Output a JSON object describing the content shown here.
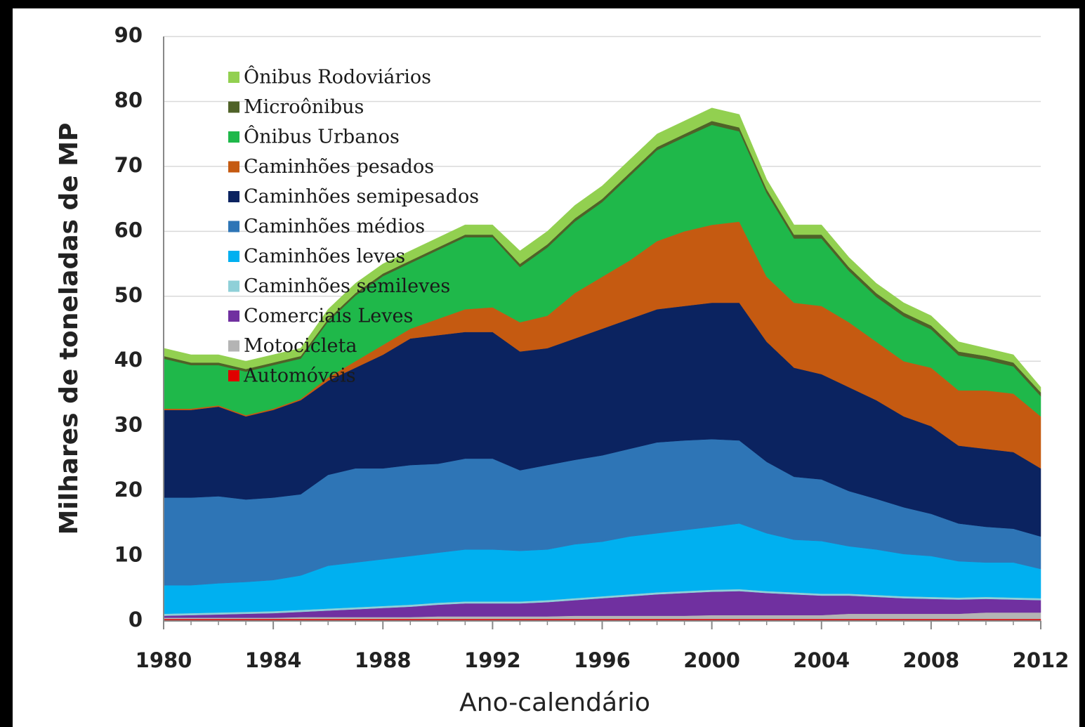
{
  "chart_data": {
    "type": "stacked_area",
    "x_label": "Ano-calendário",
    "y_label": "Milhares de toneladas de MP",
    "x": [
      1980,
      1981,
      1982,
      1983,
      1984,
      1985,
      1986,
      1987,
      1988,
      1989,
      1990,
      1991,
      1992,
      1993,
      1994,
      1995,
      1996,
      1997,
      1998,
      1999,
      2000,
      2001,
      2002,
      2003,
      2004,
      2005,
      2006,
      2007,
      2008,
      2009,
      2010,
      2011,
      2012
    ],
    "xlim": [
      1980,
      2012
    ],
    "xticks": [
      1980,
      1984,
      1988,
      1992,
      1996,
      2000,
      2004,
      2008,
      2012
    ],
    "ylim": [
      0,
      90
    ],
    "yticks": [
      0,
      10,
      20,
      30,
      40,
      50,
      60,
      70,
      80,
      90
    ],
    "grid": true,
    "legend": "upper left",
    "series": [
      {
        "name": "Automóveis",
        "color": "#e00000",
        "values": [
          0.3,
          0.3,
          0.3,
          0.3,
          0.3,
          0.3,
          0.3,
          0.3,
          0.3,
          0.3,
          0.3,
          0.3,
          0.3,
          0.3,
          0.3,
          0.3,
          0.3,
          0.3,
          0.3,
          0.3,
          0.3,
          0.3,
          0.3,
          0.3,
          0.3,
          0.3,
          0.3,
          0.3,
          0.3,
          0.3,
          0.3,
          0.3,
          0.3
        ]
      },
      {
        "name": "Motocicleta",
        "color": "#b4b4b4",
        "values": [
          0.2,
          0.2,
          0.2,
          0.2,
          0.2,
          0.3,
          0.3,
          0.3,
          0.3,
          0.3,
          0.4,
          0.4,
          0.4,
          0.4,
          0.4,
          0.5,
          0.5,
          0.5,
          0.5,
          0.5,
          0.6,
          0.6,
          0.6,
          0.6,
          0.6,
          0.8,
          0.8,
          0.8,
          0.8,
          0.8,
          1.0,
          1.0,
          1.0
        ]
      },
      {
        "name": "Comerciais Leves",
        "color": "#7030a0",
        "values": [
          0.3,
          0.4,
          0.5,
          0.6,
          0.7,
          0.8,
          1.0,
          1.2,
          1.4,
          1.6,
          1.8,
          2.0,
          2.0,
          2.0,
          2.2,
          2.4,
          2.7,
          3.0,
          3.3,
          3.5,
          3.6,
          3.7,
          3.4,
          3.2,
          3.0,
          2.8,
          2.6,
          2.4,
          2.3,
          2.2,
          2.1,
          2.0,
          1.9
        ]
      },
      {
        "name": "Caminhões semileves",
        "color": "#8fd0d8",
        "values": [
          0.3,
          0.3,
          0.3,
          0.3,
          0.3,
          0.3,
          0.3,
          0.3,
          0.3,
          0.3,
          0.3,
          0.3,
          0.3,
          0.3,
          0.3,
          0.3,
          0.3,
          0.3,
          0.3,
          0.3,
          0.3,
          0.3,
          0.3,
          0.3,
          0.3,
          0.3,
          0.3,
          0.3,
          0.3,
          0.3,
          0.3,
          0.3,
          0.3
        ]
      },
      {
        "name": "Caminhões leves",
        "color": "#00b0f0",
        "values": [
          4.4,
          4.3,
          4.5,
          4.6,
          4.8,
          5.3,
          6.6,
          6.9,
          7.2,
          7.5,
          7.7,
          8.0,
          8.0,
          7.8,
          7.8,
          8.3,
          8.4,
          8.9,
          9.1,
          9.4,
          9.7,
          10.1,
          8.9,
          8.1,
          8.1,
          7.3,
          7.0,
          6.5,
          6.3,
          5.6,
          5.3,
          5.4,
          4.5
        ]
      },
      {
        "name": "Caminhões médios",
        "color": "#2e75b6",
        "values": [
          13.5,
          13.5,
          13.4,
          12.7,
          12.7,
          12.5,
          14.0,
          14.5,
          14.0,
          14.0,
          13.7,
          14.0,
          14.0,
          12.4,
          13.0,
          13.0,
          13.3,
          13.5,
          14.0,
          13.8,
          13.5,
          12.8,
          11.0,
          9.7,
          9.5,
          8.5,
          7.8,
          7.2,
          6.5,
          5.8,
          5.5,
          5.2,
          5.0
        ]
      },
      {
        "name": "Caminhões semipesados",
        "color": "#0b2360",
        "values": [
          13.5,
          13.5,
          13.8,
          12.8,
          13.5,
          14.5,
          14.5,
          15.5,
          17.5,
          19.5,
          19.8,
          19.5,
          19.5,
          18.3,
          18.0,
          18.7,
          19.5,
          20.0,
          20.5,
          20.7,
          21.0,
          21.2,
          18.5,
          16.8,
          16.2,
          16.0,
          15.2,
          14.0,
          13.5,
          12.0,
          12.0,
          11.8,
          10.5
        ]
      },
      {
        "name": "Caminhões pesados",
        "color": "#c55a11",
        "values": [
          0.2,
          0.2,
          0.2,
          0.2,
          0.2,
          0.2,
          0.5,
          1.0,
          1.5,
          1.5,
          2.5,
          3.5,
          3.8,
          4.5,
          5.0,
          7.0,
          8.0,
          9.0,
          10.5,
          11.5,
          12.0,
          12.5,
          10.0,
          10.0,
          10.5,
          10.0,
          9.0,
          8.5,
          9.0,
          8.5,
          9.0,
          9.0,
          8.0
        ]
      },
      {
        "name": "Ônibus Urbanos",
        "color": "#1fb84a",
        "values": [
          7.7,
          6.7,
          6.2,
          6.7,
          6.7,
          6.2,
          8.6,
          10.1,
          10.6,
          10.1,
          10.6,
          11.1,
          10.8,
          8.5,
          10.5,
          11.0,
          11.5,
          13.0,
          14.0,
          14.5,
          15.4,
          13.9,
          12.9,
          9.9,
          10.4,
          7.9,
          6.9,
          6.9,
          5.9,
          5.4,
          4.7,
          4.2,
          3.1
        ]
      },
      {
        "name": "Microônibus",
        "color": "#4f6228",
        "values": [
          0.4,
          0.4,
          0.4,
          0.4,
          0.4,
          0.4,
          0.4,
          0.4,
          0.4,
          0.4,
          0.4,
          0.4,
          0.4,
          0.5,
          0.5,
          0.5,
          0.5,
          0.5,
          0.5,
          0.5,
          0.6,
          0.6,
          0.6,
          0.6,
          0.6,
          0.6,
          0.6,
          0.6,
          0.6,
          0.6,
          0.6,
          0.6,
          0.6
        ]
      },
      {
        "name": "Ônibus Rodoviários",
        "color": "#92d050",
        "values": [
          1.2,
          1.2,
          1.2,
          1.2,
          1.2,
          1.2,
          1.5,
          1.5,
          1.5,
          1.5,
          1.5,
          1.5,
          1.5,
          2.0,
          2.0,
          2.0,
          2.0,
          2.0,
          2.0,
          2.0,
          2.0,
          2.0,
          1.5,
          1.5,
          1.5,
          1.5,
          1.5,
          1.5,
          1.5,
          1.5,
          1.2,
          1.2,
          0.8
        ]
      }
    ]
  }
}
